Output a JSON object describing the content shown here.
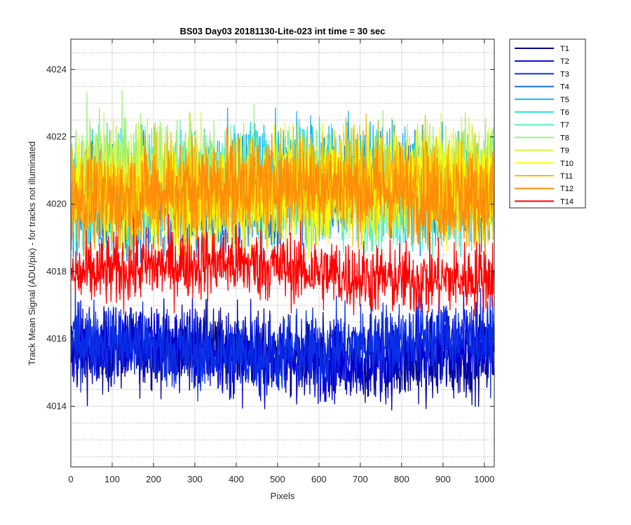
{
  "chart_data": {
    "type": "line",
    "title": "BS03 Day03 20181130-Lite-023 int time = 30 sec",
    "xlabel": "Pixels",
    "ylabel": "Track Mean Signal (ADU/pix) - for tracks not illuminated",
    "xlim": [
      0,
      1024
    ],
    "ylim": [
      4012.2,
      4024.9
    ],
    "xticks": [
      0,
      100,
      200,
      300,
      400,
      500,
      600,
      700,
      800,
      900,
      1000
    ],
    "yticks": [
      4014,
      4016,
      4018,
      4020,
      4022,
      4024
    ],
    "grid": true,
    "minor_grid_y": true,
    "legend_position": "outside-top-right",
    "n_points": 1024,
    "series": [
      {
        "name": "T1",
        "color": "#00008f",
        "mean": 4015.5,
        "amplitude": 1.0
      },
      {
        "name": "T2",
        "color": "#0000d6",
        "mean": 4015.6,
        "amplitude": 1.0
      },
      {
        "name": "T3",
        "color": "#0a30e6",
        "mean": 4015.8,
        "amplitude": 1.0
      },
      {
        "name": "T4",
        "color": "#0f6fe8",
        "mean": 4020.2,
        "amplitude": 1.3
      },
      {
        "name": "T5",
        "color": "#12b6f0",
        "mean": 4020.6,
        "amplitude": 1.4
      },
      {
        "name": "T6",
        "color": "#23e8e8",
        "mean": 4020.5,
        "amplitude": 1.3
      },
      {
        "name": "T7",
        "color": "#5ff0c2",
        "mean": 4020.4,
        "amplitude": 1.3
      },
      {
        "name": "T8",
        "color": "#9cf07c",
        "mean": 4020.8,
        "amplitude": 1.4
      },
      {
        "name": "T9",
        "color": "#d9f542",
        "mean": 4020.6,
        "amplitude": 1.3
      },
      {
        "name": "T10",
        "color": "#ffff00",
        "mean": 4020.4,
        "amplitude": 1.3
      },
      {
        "name": "T11",
        "color": "#f6be0a",
        "mean": 4020.5,
        "amplitude": 1.3
      },
      {
        "name": "T12",
        "color": "#ff8c0a",
        "mean": 4020.4,
        "amplitude": 1.2
      },
      {
        "name": "T14",
        "color": "#ff0000",
        "mean": 4018.0,
        "amplitude": 0.9
      }
    ]
  }
}
